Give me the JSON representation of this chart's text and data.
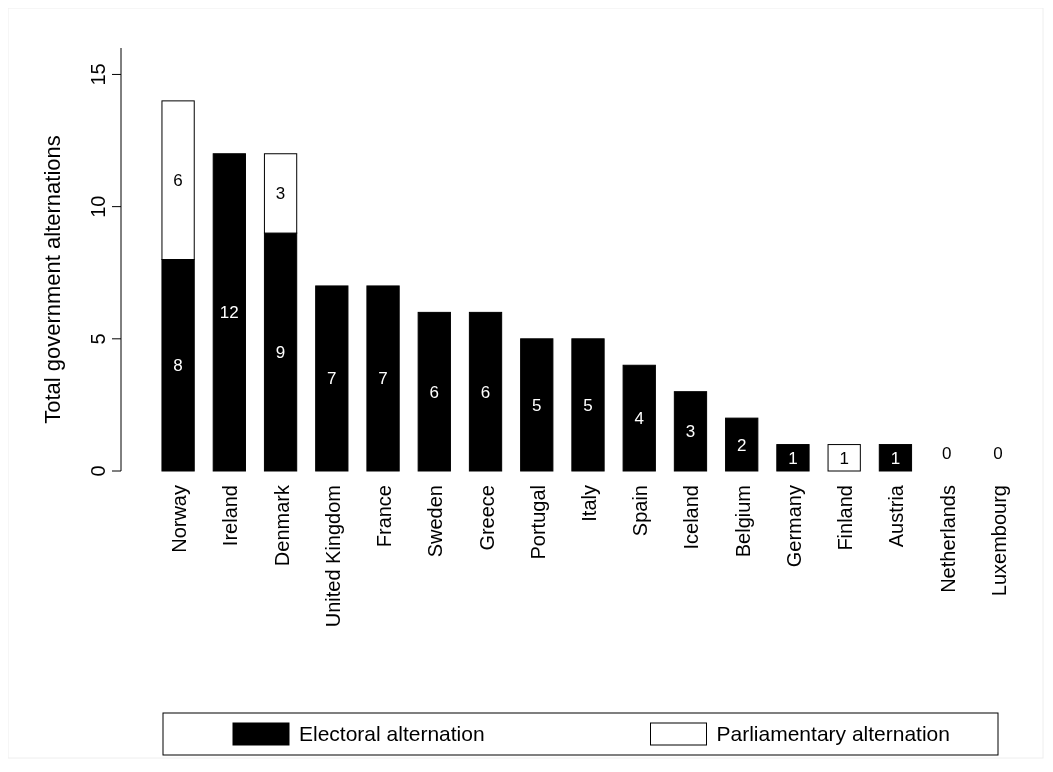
{
  "chart_data": {
    "type": "bar",
    "stacked": true,
    "ylabel": "Total government alternations",
    "categories": [
      "Norway",
      "Ireland",
      "Denmark",
      "United Kingdom",
      "France",
      "Sweden",
      "Greece",
      "Portugal",
      "Italy",
      "Spain",
      "Iceland",
      "Belgium",
      "Germany",
      "Finland",
      "Austria",
      "Netherlands",
      "Luxembourg"
    ],
    "series": [
      {
        "name": "Electoral alternation",
        "color": "#000000",
        "values": [
          8,
          12,
          9,
          7,
          7,
          6,
          6,
          5,
          5,
          4,
          3,
          2,
          1,
          0,
          1,
          0,
          0
        ],
        "value_labels": [
          "8",
          "12",
          "9",
          "7",
          "7",
          "6",
          "6",
          "5",
          "5",
          "4",
          "3",
          "2",
          "1",
          null,
          "1",
          "0",
          "0"
        ]
      },
      {
        "name": "Parliamentary alternation",
        "color": "#ffffff",
        "values": [
          6,
          0,
          3,
          0,
          0,
          0,
          0,
          0,
          0,
          0,
          0,
          0,
          0,
          1,
          0,
          0,
          0
        ],
        "value_labels": [
          "6",
          null,
          "3",
          null,
          null,
          null,
          null,
          null,
          null,
          null,
          null,
          null,
          null,
          "1",
          null,
          null,
          null
        ]
      }
    ],
    "ylim": [
      0,
      16
    ],
    "yticks": [
      0,
      5,
      10,
      15
    ],
    "grid": false,
    "legend": "bottom"
  }
}
